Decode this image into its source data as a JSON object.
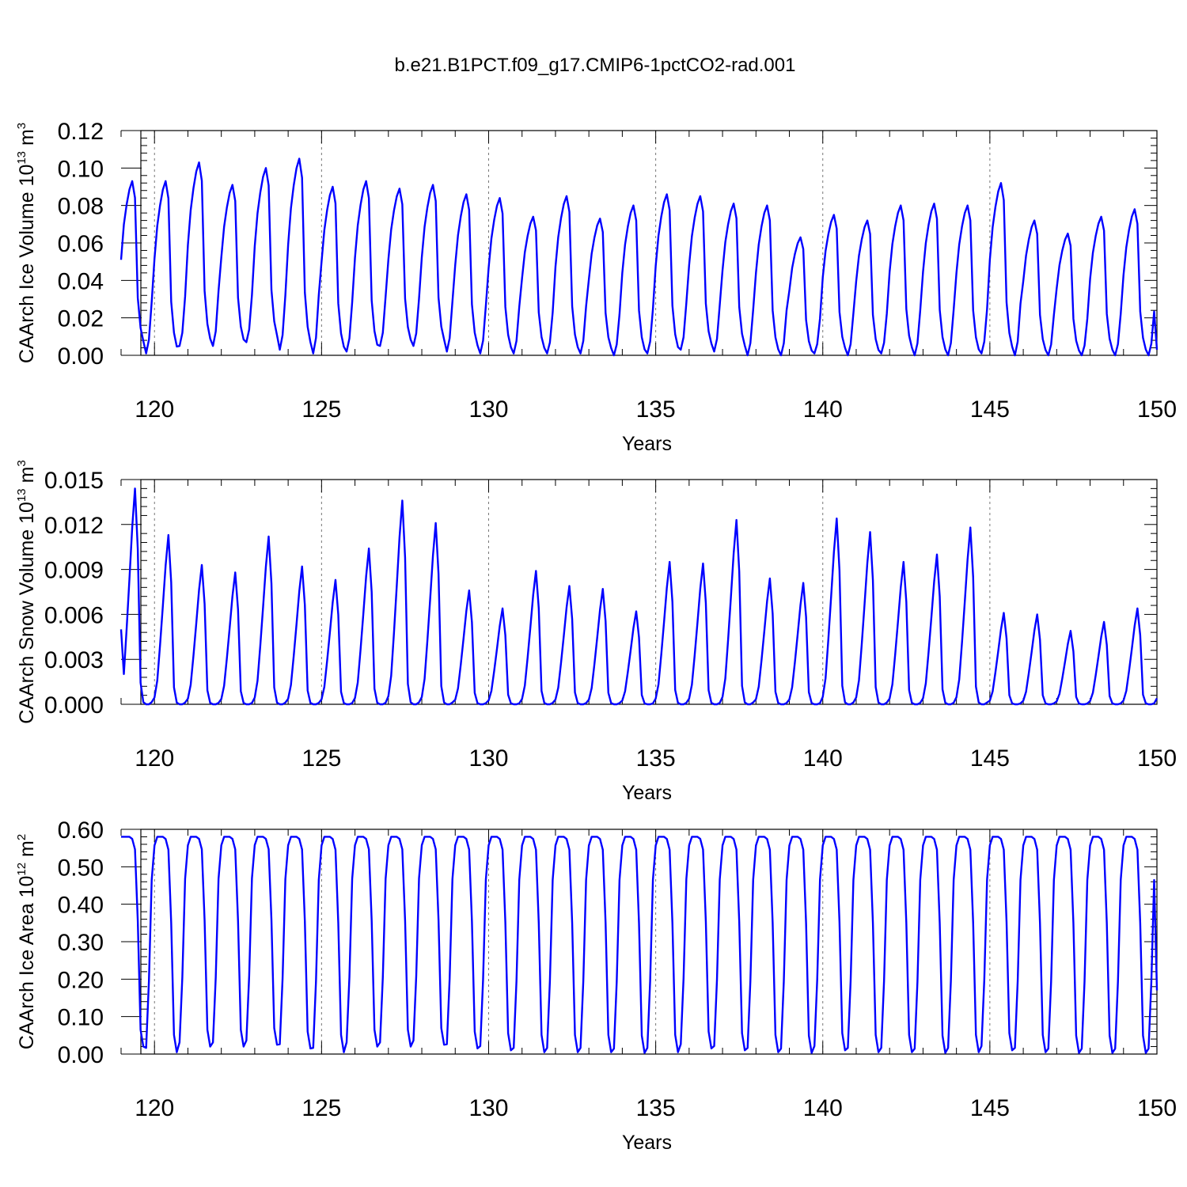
{
  "title": "b.e21.B1PCT.f09_g17.CMIP6-1pctCO2-rad.001",
  "colors": {
    "series": "#0000ff",
    "axis": "#000000",
    "grid": "#777777"
  },
  "chart_data": [
    {
      "type": "line",
      "xlabel": "Years",
      "ylabel": {
        "text": "CAArch Ice Volume 10",
        "exp": "13",
        "unit": " m",
        "unit_exp": "3"
      },
      "xlim": [
        119,
        150
      ],
      "ylim": [
        0,
        0.12
      ],
      "xticks": [
        120,
        125,
        130,
        135,
        140,
        145,
        150
      ],
      "xtick_labels": [
        "120",
        "125",
        "130",
        "135",
        "140",
        "145",
        "150"
      ],
      "yticks": [
        0,
        0.02,
        0.04,
        0.06,
        0.08,
        0.1,
        0.12
      ],
      "ytick_labels": [
        "0.00",
        "0.02",
        "0.04",
        "0.06",
        "0.08",
        "0.10",
        "0.12"
      ],
      "grid": "dashed vertical lines at major x ticks",
      "series": [
        {
          "color": "#0000ff",
          "start_year": 119,
          "annual_max": [
            0.093,
            0.093,
            0.103,
            0.091,
            0.1,
            0.105,
            0.09,
            0.093,
            0.089,
            0.091,
            0.086,
            0.084,
            0.074,
            0.085,
            0.073,
            0.08,
            0.086,
            0.085,
            0.081,
            0.08,
            0.063,
            0.075,
            0.072,
            0.08,
            0.081,
            0.08,
            0.092,
            0.072,
            0.065,
            0.074,
            0.078
          ],
          "annual_min": [
            0.004,
            0.001,
            0.005,
            0.005,
            0.007,
            0.003,
            0.001,
            0.002,
            0.005,
            0.005,
            0.002,
            0.001,
            0.001,
            0.001,
            0.001,
            0.0,
            0.001,
            0.003,
            0.002,
            0.0,
            0.0,
            0.001,
            0.0,
            0.001,
            0.0,
            0.0,
            0.001,
            0.0,
            0.0,
            0.0,
            0.0
          ],
          "first_value": 0.051,
          "last_value": 0.003,
          "values": []
        }
      ]
    },
    {
      "type": "line",
      "xlabel": "Years",
      "ylabel": {
        "text": "CAArch Snow Volume 10",
        "exp": "13",
        "unit": " m",
        "unit_exp": "3"
      },
      "xlim": [
        119,
        150
      ],
      "ylim": [
        0,
        0.015
      ],
      "xticks": [
        120,
        125,
        130,
        135,
        140,
        145,
        150
      ],
      "xtick_labels": [
        "120",
        "125",
        "130",
        "135",
        "140",
        "145",
        "150"
      ],
      "yticks": [
        0,
        0.003,
        0.006,
        0.009,
        0.012,
        0.015
      ],
      "ytick_labels": [
        "0.000",
        "0.003",
        "0.006",
        "0.009",
        "0.012",
        "0.015"
      ],
      "grid": "dashed vertical lines at major x ticks",
      "series": [
        {
          "color": "#0000ff",
          "start_year": 119,
          "annual_max": [
            0.0144,
            0.0113,
            0.0093,
            0.0088,
            0.0112,
            0.0092,
            0.0083,
            0.0104,
            0.0136,
            0.0121,
            0.0076,
            0.0064,
            0.0089,
            0.0079,
            0.0077,
            0.0062,
            0.0095,
            0.0094,
            0.0123,
            0.0084,
            0.0081,
            0.0124,
            0.0115,
            0.0095,
            0.01,
            0.0118,
            0.0061,
            0.006,
            0.0049,
            0.0055,
            0.0064
          ],
          "annual_min": [
            0.0,
            0.0,
            0.0,
            0.0,
            0.0,
            0.0,
            0.0,
            0.0,
            0.0,
            0.0,
            0.0,
            0.0,
            0.0,
            0.0,
            0.0,
            0.0,
            0.0,
            0.0,
            0.0,
            0.0,
            0.0,
            0.0,
            0.0,
            0.0,
            0.0,
            0.0,
            0.0,
            0.0,
            0.0,
            0.0,
            0.0
          ],
          "first_value": 0.005,
          "last_value": 0.0004,
          "values": []
        }
      ]
    },
    {
      "type": "line",
      "xlabel": "Years",
      "ylabel": {
        "text": "CAArch Ice Area 10",
        "exp": "12",
        "unit": " m",
        "unit_exp": "2"
      },
      "xlim": [
        119,
        150
      ],
      "ylim": [
        0,
        0.6
      ],
      "xticks": [
        120,
        125,
        130,
        135,
        140,
        145,
        150
      ],
      "xtick_labels": [
        "120",
        "125",
        "130",
        "135",
        "140",
        "145",
        "150"
      ],
      "yticks": [
        0,
        0.1,
        0.2,
        0.3,
        0.4,
        0.5,
        0.6
      ],
      "ytick_labels": [
        "0.00",
        "0.10",
        "0.20",
        "0.30",
        "0.40",
        "0.50",
        "0.60"
      ],
      "grid": "dashed vertical lines at major x ticks",
      "series": [
        {
          "color": "#0000ff",
          "start_year": 119,
          "annual_max": [
            0.58,
            0.58,
            0.58,
            0.58,
            0.58,
            0.58,
            0.58,
            0.58,
            0.58,
            0.58,
            0.58,
            0.58,
            0.58,
            0.58,
            0.58,
            0.58,
            0.58,
            0.58,
            0.58,
            0.58,
            0.58,
            0.58,
            0.58,
            0.58,
            0.58,
            0.58,
            0.58,
            0.58,
            0.58,
            0.58,
            0.58
          ],
          "annual_min": [
            0.02,
            0.005,
            0.02,
            0.02,
            0.025,
            0.015,
            0.005,
            0.02,
            0.02,
            0.025,
            0.015,
            0.01,
            0.005,
            0.005,
            0.005,
            0.003,
            0.005,
            0.015,
            0.01,
            0.005,
            0.003,
            0.01,
            0.005,
            0.005,
            0.003,
            0.005,
            0.01,
            0.005,
            0.003,
            0.003,
            0.003
          ],
          "first_value": 0.58,
          "last_value": 0.17,
          "values": []
        }
      ]
    }
  ]
}
